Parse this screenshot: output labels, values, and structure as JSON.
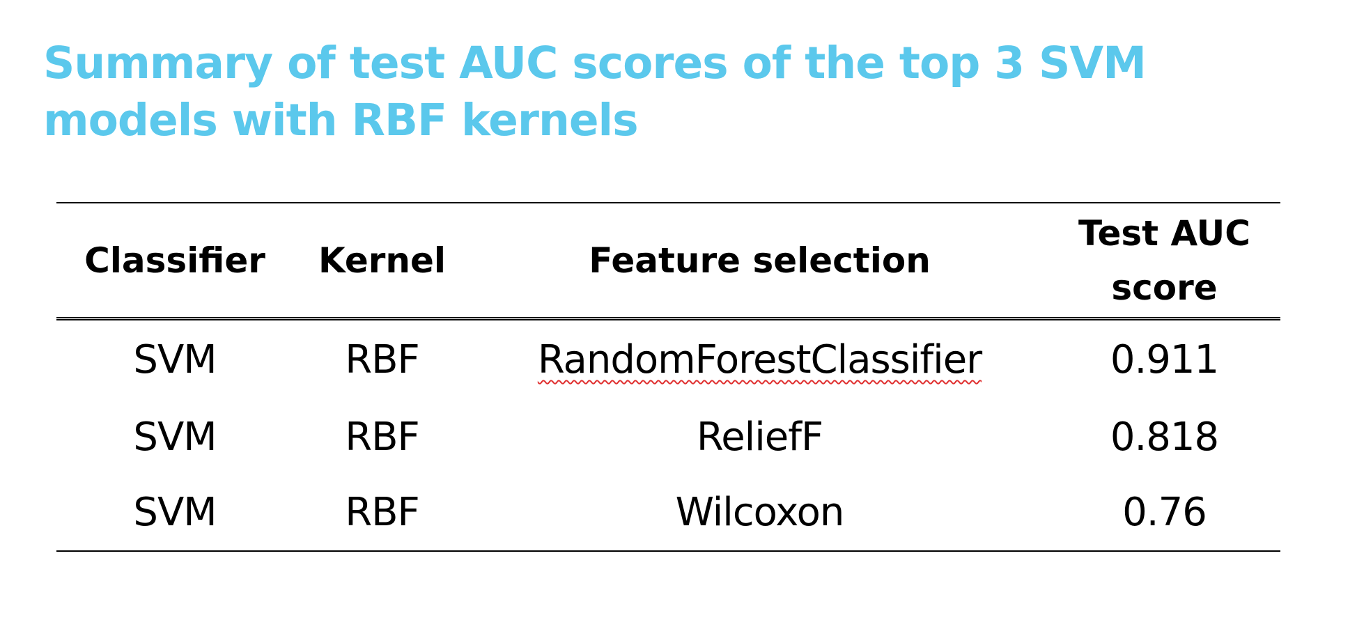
{
  "slide": {
    "title": "Summary of test AUC scores of the top 3 SVM models with RBF kernels"
  },
  "table": {
    "headers": {
      "classifier": "Classifier",
      "kernel": "Kernel",
      "feature_selection": "Feature selection",
      "test_auc_score": "Test AUC score"
    },
    "rows": [
      {
        "classifier": "SVM",
        "kernel": "RBF",
        "feature_selection": "RandomForestClassifier",
        "test_auc_score": "0.911"
      },
      {
        "classifier": "SVM",
        "kernel": "RBF",
        "feature_selection": "ReliefF",
        "test_auc_score": "0.818"
      },
      {
        "classifier": "SVM",
        "kernel": "RBF",
        "feature_selection": "Wilcoxon",
        "test_auc_score": "0.76"
      }
    ],
    "spellcheck_flag_color": "#e03030"
  }
}
